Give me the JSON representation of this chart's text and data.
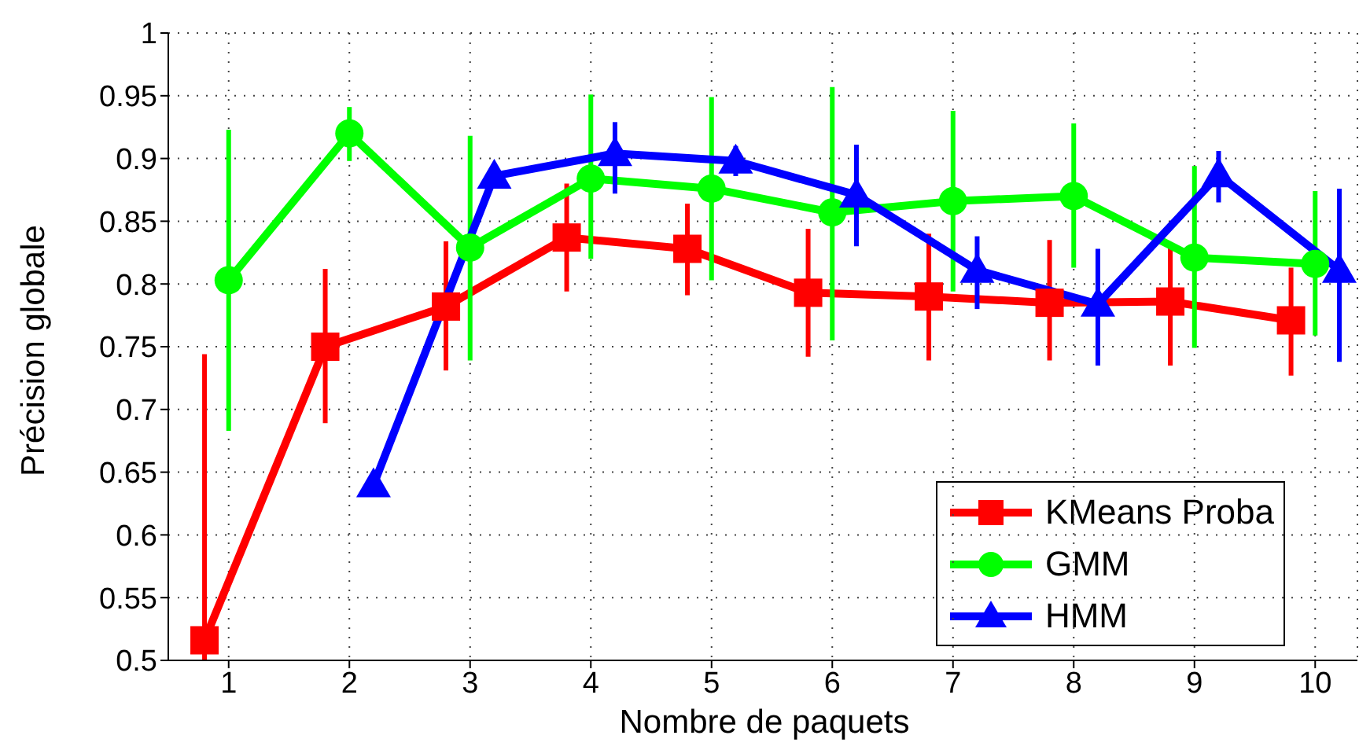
{
  "chart_data": {
    "type": "line",
    "xlabel": "Nombre de paquets",
    "ylabel": "Précision globale",
    "xlim": [
      0.5,
      10.35
    ],
    "xticks": [
      1,
      2,
      3,
      4,
      5,
      6,
      7,
      8,
      9,
      10
    ],
    "ylim": [
      0.5,
      1
    ],
    "yticks": [
      0.5,
      0.55,
      0.6,
      0.65,
      0.7,
      0.75,
      0.8,
      0.85,
      0.9,
      0.95,
      1
    ],
    "grid": true,
    "legend": "bottom right",
    "series": [
      {
        "name": "KMeans Proba",
        "color": "#ff0000",
        "marker": "square",
        "x": [
          0.8,
          1.8,
          2.8,
          3.8,
          4.8,
          5.8,
          6.8,
          7.8,
          8.8,
          9.8
        ],
        "values": [
          0.516,
          0.75,
          0.782,
          0.837,
          0.828,
          0.793,
          0.79,
          0.785,
          0.786,
          0.771
        ],
        "errors": [
          [
            0.5,
            0.744
          ],
          [
            0.689,
            0.812
          ],
          [
            0.731,
            0.834
          ],
          [
            0.794,
            0.88
          ],
          [
            0.791,
            0.864
          ],
          [
            0.742,
            0.844
          ],
          [
            0.739,
            0.84
          ],
          [
            0.739,
            0.835
          ],
          [
            0.735,
            0.829
          ],
          [
            0.727,
            0.813
          ]
        ]
      },
      {
        "name": "GMM",
        "color": "#00ff00",
        "marker": "circle",
        "x": [
          1,
          2,
          3,
          4,
          5,
          6,
          7,
          8,
          9,
          10
        ],
        "values": [
          0.803,
          0.92,
          0.829,
          0.884,
          0.876,
          0.857,
          0.866,
          0.87,
          0.821,
          0.816
        ],
        "errors": [
          [
            0.683,
            0.923
          ],
          [
            0.898,
            0.941
          ],
          [
            0.739,
            0.918
          ],
          [
            0.82,
            0.951
          ],
          [
            0.803,
            0.949
          ],
          [
            0.755,
            0.957
          ],
          [
            0.794,
            0.938
          ],
          [
            0.813,
            0.928
          ],
          [
            0.749,
            0.894
          ],
          [
            0.759,
            0.874
          ]
        ]
      },
      {
        "name": "HMM",
        "color": "#0000ff",
        "marker": "triangle",
        "x": [
          2.2,
          3.2,
          4.2,
          5.2,
          6.2,
          7.2,
          8.2,
          9.2,
          10.2
        ],
        "values": [
          0.64,
          0.886,
          0.904,
          0.898,
          0.871,
          0.811,
          0.784,
          0.887,
          0.811
        ],
        "errors": [
          null,
          null,
          [
            0.872,
            0.929
          ],
          [
            0.886,
            0.91
          ],
          [
            0.83,
            0.911
          ],
          [
            0.78,
            0.838
          ],
          [
            0.735,
            0.828
          ],
          [
            0.865,
            0.906
          ],
          [
            0.738,
            0.876
          ]
        ]
      }
    ]
  }
}
